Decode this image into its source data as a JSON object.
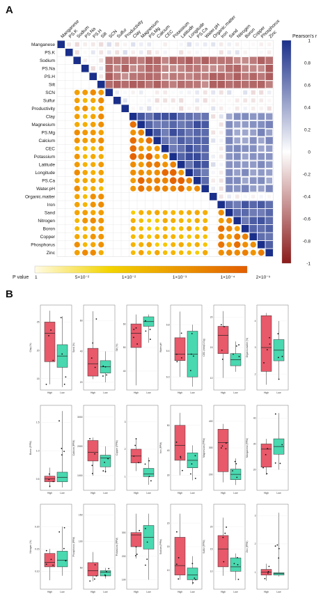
{
  "panels": {
    "a_label": "A",
    "b_label": "B"
  },
  "chart_data": [
    {
      "type": "heatmap",
      "panel": "A",
      "title": "",
      "variables": [
        "Manganese",
        "PS.K",
        "Sodium",
        "PS.Na",
        "PS.H",
        "Silt",
        "SCN",
        "Sulfur",
        "Productivity",
        "Clay",
        "Magnesium",
        "PS.Mg",
        "Calcium",
        "CEC",
        "Potassium",
        "Latitude",
        "Longitude",
        "PS.Ca",
        "Water.pH",
        "Organic.matter",
        "Iron",
        "Sand",
        "Nitrogen",
        "Boron",
        "Copper",
        "Phosphorus",
        "Zinc"
      ],
      "upper_triangle": "Pearson's r squares",
      "lower_triangle": "P value circles",
      "colorbar_r": {
        "label": "Pearson's r",
        "ticks": [
          1,
          0.8,
          0.6,
          0.4,
          0.2,
          0,
          -0.2,
          -0.4,
          -0.6,
          -0.8,
          -1
        ],
        "colors": {
          "pos": "#1a2f8a",
          "zero": "#ffffff",
          "neg": "#8b1a1a"
        }
      },
      "colorbar_p": {
        "label": "P value",
        "ticks": [
          "1",
          "5×10⁻²",
          "1×10⁻²",
          "1×10⁻³",
          "1×10⁻⁴",
          "2×10⁻⁵"
        ],
        "colors": {
          "low": "#fffbe6",
          "mid": "#f3d400",
          "high": "#e35d00"
        }
      },
      "r_blocks": [
        {
          "rows": [
            2,
            3,
            4,
            5
          ],
          "cols": [
            6,
            7,
            8,
            9,
            10,
            11,
            12,
            13,
            14,
            15,
            16,
            17,
            18,
            19,
            20,
            21,
            22,
            23,
            24,
            25,
            26
          ],
          "r": -0.65
        },
        {
          "rows": [
            9,
            10,
            11,
            12,
            13,
            14,
            15,
            16,
            17,
            18
          ],
          "cols": [
            10,
            11,
            12,
            13,
            14,
            15,
            16,
            17,
            18
          ],
          "r": 0.8
        },
        {
          "rows": [
            9,
            10,
            11,
            12,
            13,
            14,
            15,
            16,
            17,
            18
          ],
          "cols": [
            21,
            22,
            23,
            24,
            25,
            26
          ],
          "r": 0.55
        },
        {
          "rows": [
            20,
            21,
            22,
            23,
            24,
            25
          ],
          "cols": [
            21,
            22,
            23,
            24,
            25,
            26
          ],
          "r": 0.75
        }
      ]
    },
    {
      "type": "box",
      "panel": "B",
      "groups": [
        "High",
        "Low"
      ],
      "group_colors": {
        "High": "#e8596a",
        "Low": "#49d8b0"
      },
      "plots": [
        {
          "ylabel": "Clay (%)",
          "yticks": [
            "15",
            "20",
            "25"
          ],
          "ymin": 13,
          "ymax": 28,
          "high": {
            "q1": 18,
            "med": 23,
            "q3": 25,
            "wlo": 14,
            "whi": 27
          },
          "low": {
            "q1": 17,
            "med": 19,
            "q3": 21,
            "wlo": 13.5,
            "whi": 26
          }
        },
        {
          "ylabel": "Sand (%)",
          "yticks": [
            "20",
            "40",
            "60"
          ],
          "ymin": 15,
          "ymax": 70,
          "high": {
            "q1": 24,
            "med": 32,
            "q3": 42,
            "wlo": 22,
            "whi": 66
          },
          "low": {
            "q1": 26,
            "med": 30,
            "q3": 34,
            "wlo": 20,
            "whi": 40
          }
        },
        {
          "ylabel": "Silt (%)",
          "yticks": [
            "40",
            "50",
            "60"
          ],
          "ymin": 32,
          "ymax": 68,
          "high": {
            "q1": 50,
            "med": 56,
            "q3": 60,
            "wlo": 34,
            "whi": 64
          },
          "low": {
            "q1": 59,
            "med": 61,
            "q3": 63,
            "wlo": 52,
            "whi": 64
          }
        },
        {
          "ylabel": "Water.pH",
          "yticks": [
            "6.0",
            "6.4",
            "6.8"
          ],
          "ymin": 5.8,
          "ymax": 7.1,
          "high": {
            "q1": 6.25,
            "med": 6.35,
            "q3": 6.6,
            "wlo": 6.0,
            "whi": 7.0
          },
          "low": {
            "q1": 6.0,
            "med": 6.35,
            "q3": 6.7,
            "wlo": 5.85,
            "whi": 6.8
          }
        },
        {
          "ylabel": "CEC (meq/100g)",
          "yticks": [
            "10",
            "15",
            "20"
          ],
          "ymin": 8,
          "ymax": 22,
          "high": {
            "q1": 14,
            "med": 17,
            "q3": 18.5,
            "wlo": 10,
            "whi": 21
          },
          "low": {
            "q1": 12,
            "med": 13,
            "q3": 14,
            "wlo": 11,
            "whi": 16
          }
        },
        {
          "ylabel": "Organic.matter (%)",
          "yticks": [
            "2",
            "3",
            "4"
          ],
          "ymin": 1.4,
          "ymax": 4.6,
          "high": {
            "q1": 2.1,
            "med": 3.0,
            "q3": 4.2,
            "wlo": 1.6,
            "whi": 4.3
          },
          "low": {
            "q1": 2.5,
            "med": 2.9,
            "q3": 3.3,
            "wlo": 1.8,
            "whi": 4.0
          }
        },
        {
          "ylabel": "Boron (PPM)",
          "yticks": [
            "0.5",
            "1.0",
            "1.5"
          ],
          "ymin": 0.3,
          "ymax": 1.8,
          "high": {
            "q1": 0.45,
            "med": 0.5,
            "q3": 0.55,
            "wlo": 0.35,
            "whi": 0.7
          },
          "low": {
            "q1": 0.45,
            "med": 0.53,
            "q3": 0.62,
            "wlo": 0.35,
            "whi": 1.7
          }
        },
        {
          "ylabel": "Calcium (PPM)",
          "yticks": [
            "1000",
            "2000",
            "3000"
          ],
          "ymin": 500,
          "ymax": 3400,
          "high": {
            "q1": 1500,
            "med": 1800,
            "q3": 2200,
            "wlo": 1000,
            "whi": 2300
          },
          "low": {
            "q1": 1300,
            "med": 1600,
            "q3": 1700,
            "wlo": 1100,
            "whi": 2000
          }
        },
        {
          "ylabel": "Copper (PPM)",
          "yticks": [
            "1",
            "2",
            "3"
          ],
          "ymin": 0.5,
          "ymax": 3.6,
          "high": {
            "q1": 1.5,
            "med": 1.75,
            "q3": 2.0,
            "wlo": 1.2,
            "whi": 2.4
          },
          "low": {
            "q1": 1.0,
            "med": 1.1,
            "q3": 1.3,
            "wlo": 0.7,
            "whi": 1.7
          }
        },
        {
          "ylabel": "Iron (PPM)",
          "yticks": [
            "30",
            "40",
            "50"
          ],
          "ymin": 24,
          "ymax": 58,
          "high": {
            "q1": 36,
            "med": 42,
            "q3": 50,
            "wlo": 30,
            "whi": 55
          },
          "low": {
            "q1": 33,
            "med": 36,
            "q3": 39,
            "wlo": 28,
            "whi": 42
          }
        },
        {
          "ylabel": "Magnesium (PPM)",
          "yticks": [
            "200",
            "300",
            "400"
          ],
          "ymin": 140,
          "ymax": 460,
          "high": {
            "q1": 210,
            "med": 320,
            "q3": 370,
            "wlo": 170,
            "whi": 390
          },
          "low": {
            "q1": 180,
            "med": 200,
            "q3": 220,
            "wlo": 160,
            "whi": 260
          }
        },
        {
          "ylabel": "Manganese (PPM)",
          "yticks": [
            "20",
            "30",
            "40"
          ],
          "ymin": 12,
          "ymax": 45,
          "high": {
            "q1": 21,
            "med": 28,
            "q3": 30,
            "wlo": 18,
            "whi": 32
          },
          "low": {
            "q1": 26,
            "med": 29,
            "q3": 32,
            "wlo": 20,
            "whi": 42
          }
        },
        {
          "ylabel": "Nitrogen (%)",
          "yticks": [
            "0.10",
            "0.15",
            "0.20"
          ],
          "ymin": 0.06,
          "ymax": 0.25,
          "high": {
            "q1": 0.11,
            "med": 0.12,
            "q3": 0.14,
            "wlo": 0.08,
            "whi": 0.15
          },
          "low": {
            "q1": 0.11,
            "med": 0.125,
            "q3": 0.145,
            "wlo": 0.09,
            "whi": 0.2
          }
        },
        {
          "ylabel": "Phosphorus (PPM)",
          "yticks": [
            "50",
            "100",
            "150"
          ],
          "ymin": 10,
          "ymax": 170,
          "high": {
            "q1": 35,
            "med": 45,
            "q3": 60,
            "wlo": 25,
            "whi": 80
          },
          "low": {
            "q1": 35,
            "med": 42,
            "q3": 45,
            "wlo": 30,
            "whi": 50
          }
        },
        {
          "ylabel": "Potassium (PPM)",
          "yticks": [
            "100",
            "200",
            "300"
          ],
          "ymin": 60,
          "ymax": 420,
          "high": {
            "q1": 240,
            "med": 290,
            "q3": 300,
            "wlo": 190,
            "whi": 380
          },
          "low": {
            "q1": 230,
            "med": 280,
            "q3": 330,
            "wlo": 100,
            "whi": 380
          }
        },
        {
          "ylabel": "Sodium (PPM)",
          "yticks": [
            "10",
            "15",
            "20"
          ],
          "ymin": 6,
          "ymax": 24,
          "high": {
            "q1": 9,
            "med": 11,
            "q3": 17,
            "wlo": 8,
            "whi": 22
          },
          "low": {
            "q1": 8,
            "med": 9,
            "q3": 10.5,
            "wlo": 7,
            "whi": 13
          }
        },
        {
          "ylabel": "Sulfur (PPM)",
          "yticks": [
            "10",
            "15",
            "20"
          ],
          "ymin": 6,
          "ymax": 25,
          "high": {
            "q1": 11,
            "med": 15,
            "q3": 18,
            "wlo": 9,
            "whi": 22
          },
          "low": {
            "q1": 10,
            "med": 11,
            "q3": 13,
            "wlo": 8,
            "whi": 14
          }
        },
        {
          "ylabel": "Zinc (PPM)",
          "yticks": [
            "1",
            "2",
            "3"
          ],
          "ymin": 0.4,
          "ymax": 3.4,
          "high": {
            "q1": 0.9,
            "med": 1.0,
            "q3": 1.1,
            "wlo": 0.7,
            "whi": 1.3
          },
          "low": {
            "q1": 0.9,
            "med": 0.95,
            "q3": 0.98,
            "wlo": 0.85,
            "whi": 3.1
          }
        }
      ]
    }
  ]
}
